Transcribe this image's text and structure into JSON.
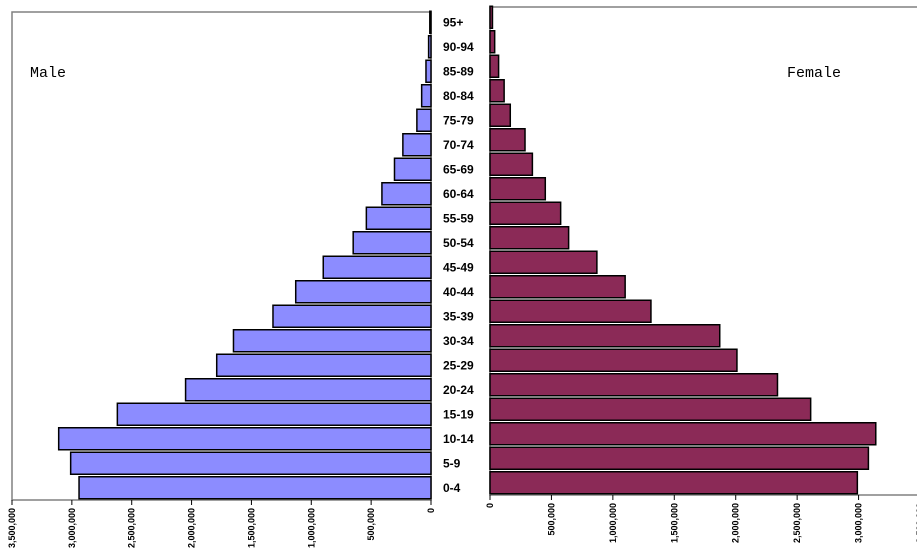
{
  "chart_data": {
    "type": "bar",
    "orientation": "horizontal",
    "layout": "population-pyramid",
    "categories": [
      "0-4",
      "5-9",
      "10-14",
      "15-19",
      "20-24",
      "25-29",
      "30-34",
      "35-39",
      "40-44",
      "45-49",
      "50-54",
      "55-59",
      "60-64",
      "65-69",
      "70-74",
      "75-79",
      "80-84",
      "85-89",
      "90-94",
      "95+"
    ],
    "series": [
      {
        "name": "Male",
        "color": "#8c8cff",
        "values": [
          2940000,
          3010000,
          3110000,
          2620000,
          2050000,
          1790000,
          1650000,
          1320000,
          1130000,
          900000,
          650000,
          540000,
          410000,
          305000,
          235000,
          118000,
          78000,
          42000,
          20000,
          10000
        ]
      },
      {
        "name": "Female",
        "color": "#8b2a57",
        "values": [
          2990000,
          3080000,
          3140000,
          2610000,
          2340000,
          2010000,
          1870000,
          1310000,
          1100000,
          870000,
          640000,
          575000,
          450000,
          345000,
          285000,
          165000,
          115000,
          70000,
          38000,
          20000
        ]
      }
    ],
    "male_axis": {
      "ticks": [
        3500000,
        3000000,
        2500000,
        2000000,
        1500000,
        1000000,
        500000,
        0
      ],
      "tick_labels": [
        "3,500,000",
        "3,000,000",
        "2,500,000",
        "2,000,000",
        "1,500,000",
        "1,000,000",
        "500,000",
        "0"
      ],
      "range": [
        0,
        3500000
      ],
      "reversed": true
    },
    "female_axis": {
      "ticks": [
        0,
        500000,
        1000000,
        1500000,
        2000000,
        2500000,
        3000000,
        3500000
      ],
      "tick_labels": [
        "0",
        "500,000",
        "1,000,000",
        "1,500,000",
        "2,000,000",
        "2,500,000",
        "3,000,000",
        "3,500,000"
      ],
      "range": [
        0,
        3500000
      ]
    },
    "grid": false,
    "legend": "none"
  }
}
